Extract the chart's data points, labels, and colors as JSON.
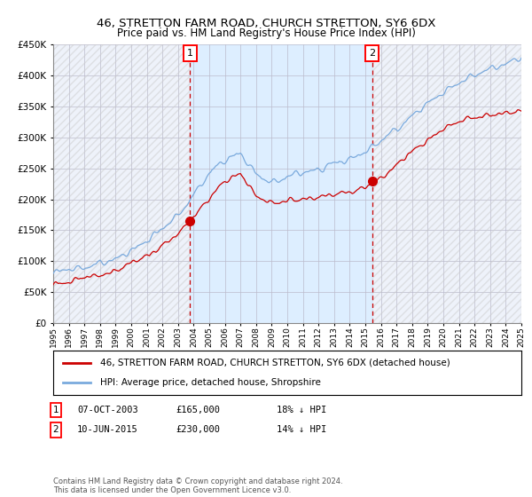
{
  "title": "46, STRETTON FARM ROAD, CHURCH STRETTON, SY6 6DX",
  "subtitle": "Price paid vs. HM Land Registry's House Price Index (HPI)",
  "x_start_year": 1995,
  "x_end_year": 2025,
  "y_min": 0,
  "y_max": 450000,
  "y_ticks": [
    0,
    50000,
    100000,
    150000,
    200000,
    250000,
    300000,
    350000,
    400000,
    450000
  ],
  "sale1_date": 2003.77,
  "sale1_price": 165000,
  "sale1_label": "1",
  "sale2_date": 2015.44,
  "sale2_price": 230000,
  "sale2_label": "2",
  "hpi_color": "#7aaadd",
  "price_color": "#cc0000",
  "dot_color": "#cc0000",
  "vline_color": "#cc0000",
  "shaded_color": "#ddeeff",
  "grid_color": "#bbbbcc",
  "background_color": "#ffffff",
  "plot_bg_color": "#eef2fa",
  "legend1_text": "46, STRETTON FARM ROAD, CHURCH STRETTON, SY6 6DX (detached house)",
  "legend2_text": "HPI: Average price, detached house, Shropshire",
  "footer": "Contains HM Land Registry data © Crown copyright and database right 2024.\nThis data is licensed under the Open Government Licence v3.0."
}
